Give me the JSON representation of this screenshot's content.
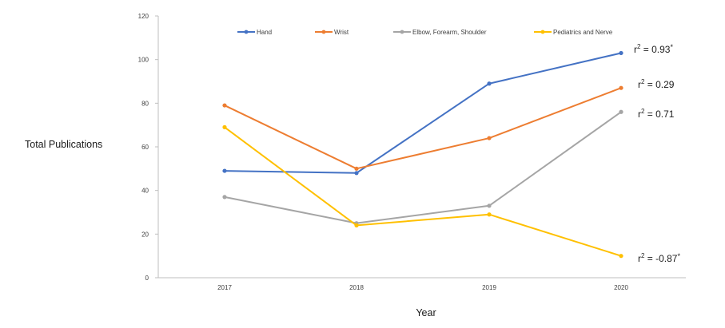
{
  "chart_data": {
    "type": "line",
    "xlabel": "Year",
    "ylabel": "Total Publications",
    "categories": [
      "2017",
      "2018",
      "2019",
      "2020"
    ],
    "ylim": [
      0,
      120
    ],
    "yticks": [
      0,
      20,
      40,
      60,
      80,
      100,
      120
    ],
    "grid": false,
    "legend_position": "top",
    "series": [
      {
        "name": "Hand",
        "color": "#4472C4",
        "values": [
          49,
          48,
          89,
          103
        ]
      },
      {
        "name": "Wrist",
        "color": "#ED7D31",
        "values": [
          79,
          50,
          64,
          87
        ]
      },
      {
        "name": "Elbow, Forearm, Shoulder",
        "color": "#A5A5A5",
        "values": [
          37,
          25,
          33,
          76
        ]
      },
      {
        "name": "Pediatrics and Nerve",
        "color": "#FFC000",
        "values": [
          69,
          24,
          29,
          10
        ]
      }
    ],
    "annotations": [
      {
        "series": "Hand",
        "base": "r",
        "exponent": "2",
        "text": " = 0.93",
        "mark": "*"
      },
      {
        "series": "Wrist",
        "base": "r",
        "exponent": "2",
        "text": " = 0.29",
        "mark": ""
      },
      {
        "series": "Elbow, Forearm, Shoulder",
        "base": "r",
        "exponent": "2",
        "text": " = 0.71",
        "mark": ""
      },
      {
        "series": "Pediatrics and Nerve",
        "base": "r",
        "exponent": "2",
        "text": " = -0.87",
        "mark": "*"
      }
    ]
  }
}
